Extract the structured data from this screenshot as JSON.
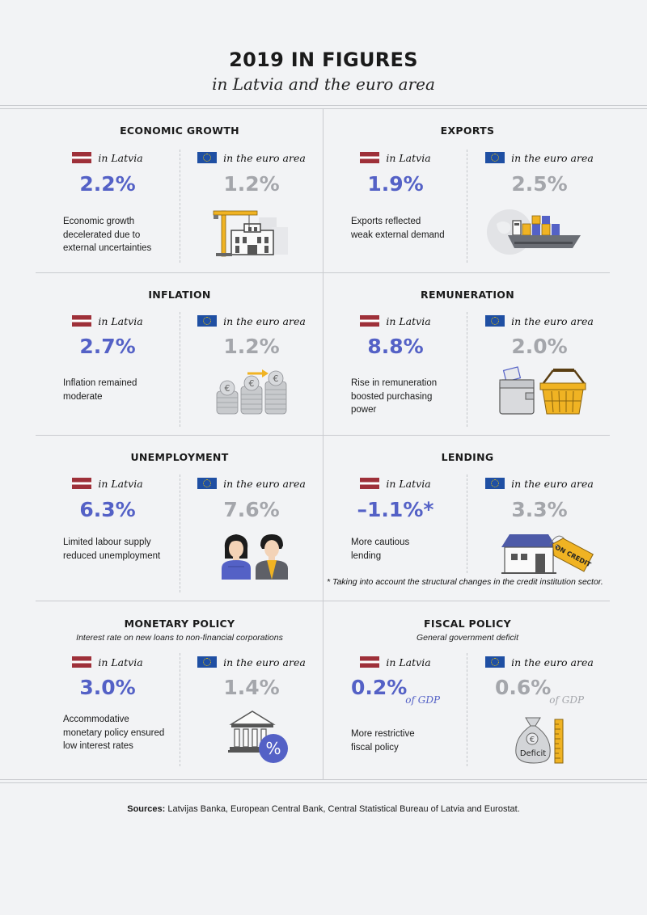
{
  "header": {
    "title": "2019 IN FIGURES",
    "subtitle": "in Latvia and the euro area"
  },
  "labels": {
    "latvia": "in Latvia",
    "euro": "in the euro area",
    "of_gdp": "of GDP"
  },
  "colors": {
    "latvia_value": "#5461c6",
    "euro_value": "#a4a6ab",
    "flag_latvia": "#9e3039",
    "flag_eu": "#1f4fa3"
  },
  "panels": {
    "economic_growth": {
      "title": "ECONOMIC GROWTH",
      "latvia_value": "2.2%",
      "euro_value": "1.2%",
      "description_lines": [
        "Economic growth",
        "decelerated due to",
        "external uncertainties"
      ],
      "icon": "construction-crane-icon"
    },
    "exports": {
      "title": "EXPORTS",
      "latvia_value": "1.9%",
      "euro_value": "2.5%",
      "description_lines": [
        "Exports reflected",
        "weak external demand"
      ],
      "icon": "cargo-ship-icon"
    },
    "inflation": {
      "title": "INFLATION",
      "latvia_value": "2.7%",
      "euro_value": "1.2%",
      "description_lines": [
        "Inflation remained",
        "moderate"
      ],
      "icon": "coin-stacks-icon"
    },
    "remuneration": {
      "title": "REMUNERATION",
      "latvia_value": "8.8%",
      "euro_value": "2.0%",
      "description_lines": [
        "Rise in remuneration",
        "boosted purchasing",
        "power"
      ],
      "icon": "wallet-basket-icon"
    },
    "unemployment": {
      "title": "UNEMPLOYMENT",
      "latvia_value": "6.3%",
      "euro_value": "7.6%",
      "description_lines": [
        "Limited labour supply",
        "reduced unemployment"
      ],
      "icon": "people-icon"
    },
    "lending": {
      "title": "LENDING",
      "latvia_value": "–1.1%*",
      "euro_value": "3.3%",
      "description_lines": [
        "More cautious",
        "lending"
      ],
      "icon": "house-on-credit-icon",
      "tag_text": "ON CREDIT",
      "footnote": "* Taking into account the structural changes in the credit institution sector."
    },
    "monetary_policy": {
      "title": "MONETARY POLICY",
      "subtitle": "Interest rate on new loans to non-financial corporations",
      "latvia_value": "3.0%",
      "euro_value": "1.4%",
      "description_lines": [
        "Accommodative",
        "monetary policy ensured",
        "low interest rates"
      ],
      "icon": "bank-percent-icon"
    },
    "fiscal_policy": {
      "title": "FISCAL POLICY",
      "subtitle": "General government deficit",
      "latvia_value": "0.2%",
      "euro_value": "0.6%",
      "description_lines": [
        "More restrictive",
        "fiscal policy"
      ],
      "icon": "money-bag-icon",
      "bag_label": "Deficit"
    }
  },
  "sources": {
    "label": "Sources:",
    "text": "Latvijas Banka, European Central Bank, Central Statistical Bureau of Latvia and Eurostat."
  }
}
